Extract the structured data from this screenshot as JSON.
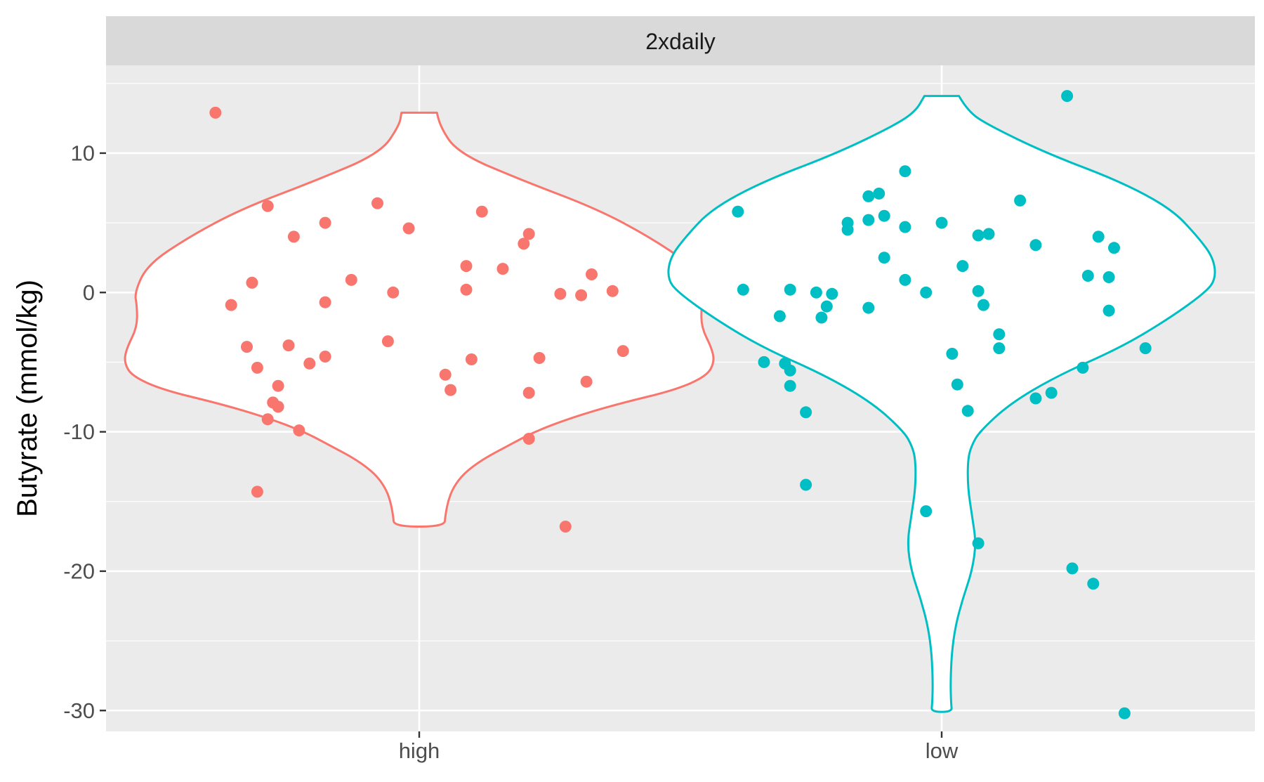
{
  "chart_data": {
    "type": "violin",
    "facet_label": "2xdaily",
    "xlabel": "",
    "ylabel": "Butyrate (mmol/kg)",
    "categories": [
      "high",
      "low"
    ],
    "ylim": [
      -31.5,
      16.3
    ],
    "yticks": [
      10,
      0,
      -10,
      -20,
      -30
    ],
    "ytick_labels": [
      "10",
      "0",
      "-10",
      "-20",
      "-30"
    ],
    "grid": true,
    "colors": {
      "high": "#F8766D",
      "low": "#00BFC4",
      "panel": "#EBEBEB",
      "strip": "#D9D9D9",
      "grid": "#FFFFFF"
    },
    "series": [
      {
        "name": "high",
        "violin_profile": [
          {
            "y": 12.9,
            "w": 0.034
          },
          {
            "y": 12.0,
            "w": 0.038
          },
          {
            "y": 10.0,
            "w": 0.074
          },
          {
            "y": 8.0,
            "w": 0.2
          },
          {
            "y": 6.0,
            "w": 0.34
          },
          {
            "y": 4.0,
            "w": 0.44
          },
          {
            "y": 2.0,
            "w": 0.52
          },
          {
            "y": 0.0,
            "w": 0.545
          },
          {
            "y": -1.0,
            "w": 0.54
          },
          {
            "y": -2.5,
            "w": 0.54
          },
          {
            "y": -4.0,
            "w": 0.56
          },
          {
            "y": -5.0,
            "w": 0.565
          },
          {
            "y": -6.0,
            "w": 0.55
          },
          {
            "y": -7.0,
            "w": 0.49
          },
          {
            "y": -8.0,
            "w": 0.38
          },
          {
            "y": -9.0,
            "w": 0.29
          },
          {
            "y": -10.0,
            "w": 0.22
          },
          {
            "y": -11.0,
            "w": 0.17
          },
          {
            "y": -12.0,
            "w": 0.12
          },
          {
            "y": -13.0,
            "w": 0.085
          },
          {
            "y": -14.0,
            "w": 0.065
          },
          {
            "y": -15.0,
            "w": 0.055
          },
          {
            "y": -16.0,
            "w": 0.05
          },
          {
            "y": -16.8,
            "w": 0.048
          }
        ],
        "points": [
          [
            -0.39,
            12.9
          ],
          [
            -0.29,
            6.2
          ],
          [
            -0.24,
            4.0
          ],
          [
            -0.18,
            5.0
          ],
          [
            -0.08,
            6.4
          ],
          [
            -0.02,
            4.6
          ],
          [
            0.12,
            5.8
          ],
          [
            0.21,
            4.2
          ],
          [
            0.2,
            3.5
          ],
          [
            -0.32,
            0.7
          ],
          [
            -0.13,
            0.9
          ],
          [
            0.09,
            1.9
          ],
          [
            0.16,
            1.7
          ],
          [
            0.33,
            1.3
          ],
          [
            -0.36,
            -0.9
          ],
          [
            -0.18,
            -0.7
          ],
          [
            -0.05,
            0.0
          ],
          [
            0.09,
            0.2
          ],
          [
            0.27,
            -0.1
          ],
          [
            0.31,
            -0.2
          ],
          [
            0.37,
            0.1
          ],
          [
            -0.33,
            -3.9
          ],
          [
            -0.31,
            -5.4
          ],
          [
            -0.25,
            -3.8
          ],
          [
            -0.21,
            -5.1
          ],
          [
            -0.18,
            -4.6
          ],
          [
            -0.06,
            -3.5
          ],
          [
            0.1,
            -4.8
          ],
          [
            0.23,
            -4.7
          ],
          [
            0.39,
            -4.2
          ],
          [
            -0.27,
            -6.7
          ],
          [
            -0.28,
            -7.9
          ],
          [
            -0.27,
            -8.2
          ],
          [
            -0.29,
            -9.1
          ],
          [
            -0.23,
            -9.9
          ],
          [
            0.05,
            -5.9
          ],
          [
            0.06,
            -7.0
          ],
          [
            0.21,
            -7.2
          ],
          [
            0.32,
            -6.4
          ],
          [
            0.21,
            -10.5
          ],
          [
            -0.31,
            -14.3
          ],
          [
            0.28,
            -16.8
          ]
        ]
      },
      {
        "name": "low",
        "violin_profile": [
          {
            "y": 14.1,
            "w": 0.033
          },
          {
            "y": 13.0,
            "w": 0.05
          },
          {
            "y": 12.0,
            "w": 0.09
          },
          {
            "y": 10.0,
            "w": 0.2
          },
          {
            "y": 8.0,
            "w": 0.34
          },
          {
            "y": 6.0,
            "w": 0.44
          },
          {
            "y": 4.0,
            "w": 0.49
          },
          {
            "y": 2.5,
            "w": 0.52
          },
          {
            "y": 1.0,
            "w": 0.525
          },
          {
            "y": 0.0,
            "w": 0.505
          },
          {
            "y": -2.0,
            "w": 0.43
          },
          {
            "y": -4.0,
            "w": 0.34
          },
          {
            "y": -6.0,
            "w": 0.22
          },
          {
            "y": -8.0,
            "w": 0.13
          },
          {
            "y": -10.0,
            "w": 0.072
          },
          {
            "y": -11.0,
            "w": 0.057
          },
          {
            "y": -12.0,
            "w": 0.05
          },
          {
            "y": -14.0,
            "w": 0.05
          },
          {
            "y": -16.0,
            "w": 0.058
          },
          {
            "y": -18.0,
            "w": 0.066
          },
          {
            "y": -20.0,
            "w": 0.058
          },
          {
            "y": -22.0,
            "w": 0.04
          },
          {
            "y": -24.0,
            "w": 0.026
          },
          {
            "y": -26.0,
            "w": 0.019
          },
          {
            "y": -28.0,
            "w": 0.017
          },
          {
            "y": -29.5,
            "w": 0.018
          },
          {
            "y": -30.1,
            "w": 0.02
          }
        ],
        "points": [
          [
            0.24,
            14.1
          ],
          [
            -0.39,
            5.8
          ],
          [
            -0.07,
            8.7
          ],
          [
            -0.14,
            6.9
          ],
          [
            -0.12,
            7.1
          ],
          [
            -0.14,
            5.2
          ],
          [
            -0.18,
            4.5
          ],
          [
            -0.11,
            5.5
          ],
          [
            -0.18,
            5.0
          ],
          [
            -0.11,
            2.5
          ],
          [
            -0.07,
            4.7
          ],
          [
            0.0,
            5.0
          ],
          [
            0.07,
            4.1
          ],
          [
            0.09,
            4.2
          ],
          [
            0.15,
            6.6
          ],
          [
            0.18,
            3.4
          ],
          [
            0.3,
            4.0
          ],
          [
            0.33,
            3.2
          ],
          [
            -0.38,
            0.2
          ],
          [
            -0.29,
            0.2
          ],
          [
            -0.24,
            0.0
          ],
          [
            -0.21,
            -0.1
          ],
          [
            -0.22,
            -1.0
          ],
          [
            -0.23,
            -1.8
          ],
          [
            -0.31,
            -1.7
          ],
          [
            -0.03,
            0.0
          ],
          [
            -0.07,
            0.9
          ],
          [
            0.04,
            1.9
          ],
          [
            0.07,
            0.1
          ],
          [
            0.08,
            -0.9
          ],
          [
            0.28,
            1.2
          ],
          [
            0.32,
            1.1
          ],
          [
            0.32,
            -1.3
          ],
          [
            -0.34,
            -5.0
          ],
          [
            -0.3,
            -5.1
          ],
          [
            -0.29,
            -5.6
          ],
          [
            -0.29,
            -6.7
          ],
          [
            -0.26,
            -8.6
          ],
          [
            -0.14,
            -1.1
          ],
          [
            0.02,
            -4.4
          ],
          [
            0.03,
            -6.6
          ],
          [
            0.05,
            -8.5
          ],
          [
            0.11,
            -3.0
          ],
          [
            0.11,
            -4.0
          ],
          [
            0.18,
            -7.6
          ],
          [
            0.21,
            -7.2
          ],
          [
            0.27,
            -5.4
          ],
          [
            0.39,
            -4.0
          ],
          [
            -0.26,
            -13.8
          ],
          [
            -0.03,
            -15.7
          ],
          [
            0.07,
            -18.0
          ],
          [
            0.25,
            -19.8
          ],
          [
            0.29,
            -20.9
          ],
          [
            0.35,
            -30.2
          ]
        ]
      }
    ]
  }
}
